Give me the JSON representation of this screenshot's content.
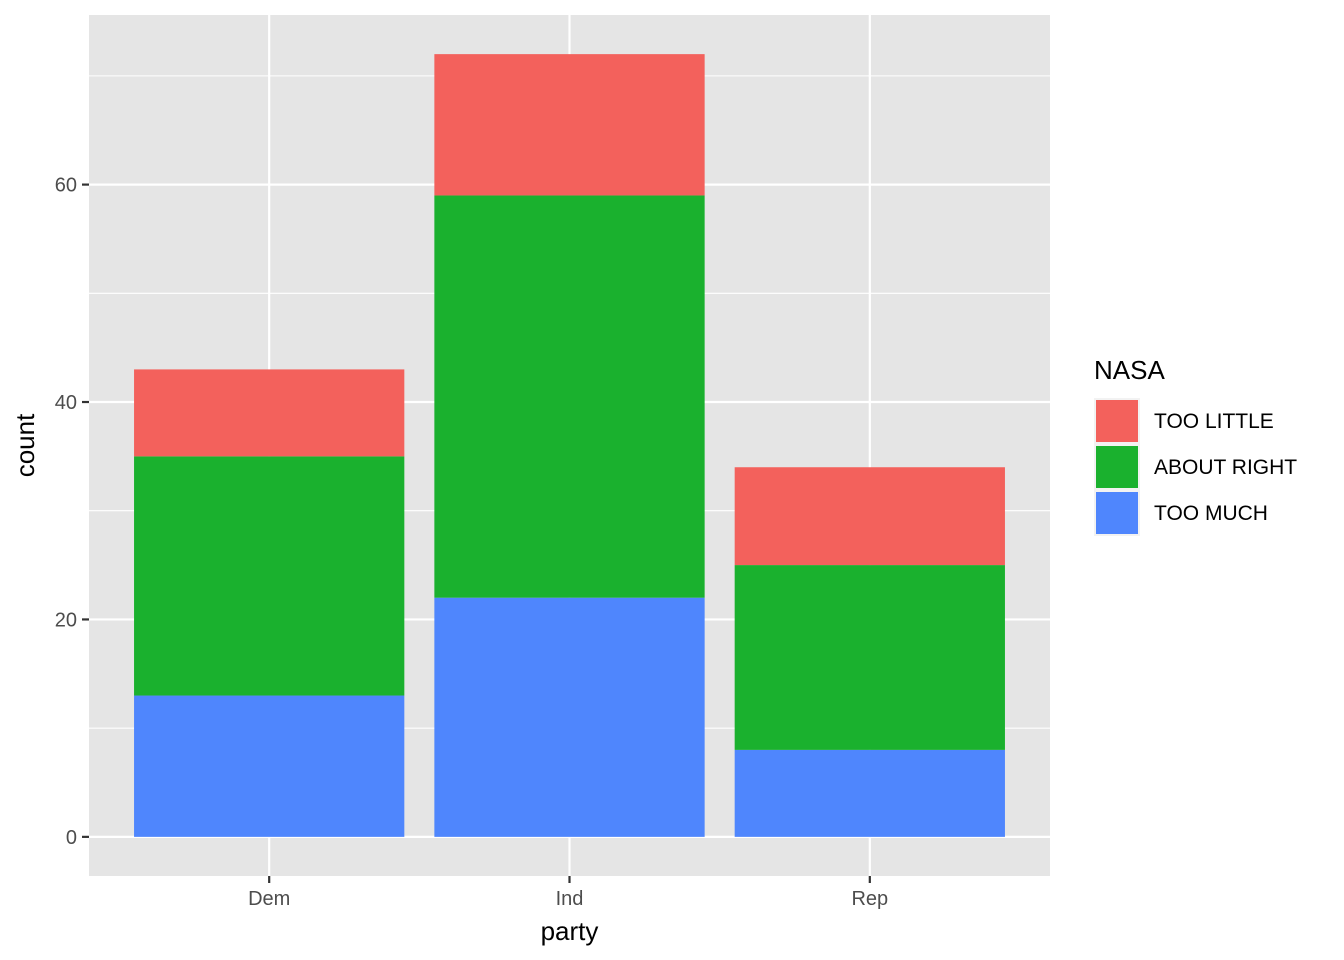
{
  "chart_data": {
    "type": "bar",
    "stacked": true,
    "categories": [
      "Dem",
      "Ind",
      "Rep"
    ],
    "series": [
      {
        "name": "TOO MUCH",
        "color": "#4f86fd",
        "values": [
          13,
          22,
          8
        ]
      },
      {
        "name": "ABOUT RIGHT",
        "color": "#1ab12e",
        "values": [
          22,
          37,
          17
        ]
      },
      {
        "name": "TOO LITTLE",
        "color": "#f3615c",
        "values": [
          8,
          13,
          9
        ]
      }
    ],
    "xlabel": "party",
    "ylabel": "count",
    "ylim": [
      -3.6,
      75.6
    ],
    "yticks": [
      0,
      20,
      40,
      60
    ],
    "ytick_labels": [
      "0",
      "20",
      "40",
      "60"
    ],
    "grid": true,
    "panel_background": "#e5e5e5",
    "legend": {
      "title": "NASA",
      "position": "right",
      "entries": [
        "TOO LITTLE",
        "ABOUT RIGHT",
        "TOO MUCH"
      ]
    }
  }
}
